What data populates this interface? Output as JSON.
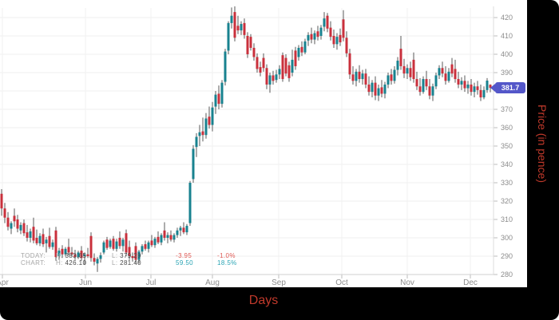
{
  "axis_titles": {
    "x": "Days",
    "y": "Price (in pence)"
  },
  "price_badge": {
    "value": "381.7",
    "color": "#5457c9"
  },
  "legend": {
    "rows": [
      {
        "label": "TODAY:",
        "h_prefix": "H:",
        "high": "383.65",
        "l_prefix": "L:",
        "low": "379.29",
        "change": "-3.95",
        "pct": "-1.0%"
      },
      {
        "label": "CHART:",
        "h_prefix": "H:",
        "high": "426.10",
        "l_prefix": "L:",
        "low": "281.40",
        "change": "59.50",
        "pct": "18.5%"
      }
    ]
  },
  "chart_data": {
    "type": "candlestick",
    "title": "",
    "xlabel": "Days",
    "ylabel": "Price (in pence)",
    "ylim": [
      280,
      420
    ],
    "grid": true,
    "legend_position": "bottom-left",
    "last_price": 381.7,
    "colors": {
      "up": "#18828f",
      "down": "#c9303c",
      "wick": "#5a5a5a",
      "grid": "#efefef",
      "axis": "#cfcfcf",
      "tick": "#bdbdbd",
      "label": "#8c8c8c"
    },
    "y_axis": {
      "min": 280,
      "max": 420,
      "step": 10,
      "ticks": [
        420,
        410,
        400,
        390,
        380,
        370,
        360,
        350,
        340,
        330,
        320,
        310,
        300,
        290,
        280
      ]
    },
    "x_axis": {
      "months": [
        {
          "label": "Apr",
          "x": 3
        },
        {
          "label": "Jun",
          "x": 107
        },
        {
          "label": "Jul",
          "x": 189
        },
        {
          "label": "Aug",
          "x": 266
        },
        {
          "label": "Sep",
          "x": 349
        },
        {
          "label": "Oct",
          "x": 428
        },
        {
          "label": "Nov",
          "x": 510
        },
        {
          "label": "Dec",
          "x": 589
        }
      ]
    },
    "candles": [
      [
        324,
        326.5,
        312,
        316
      ],
      [
        316,
        319,
        308,
        311
      ],
      [
        311,
        314,
        304,
        306
      ],
      [
        305,
        309,
        302,
        308
      ],
      [
        312,
        316,
        306,
        309
      ],
      [
        310,
        312.5,
        303,
        305
      ],
      [
        304,
        308.5,
        302,
        307
      ],
      [
        308,
        310,
        301,
        302.5
      ],
      [
        303,
        307,
        298,
        300
      ],
      [
        300,
        305,
        297.5,
        303.5
      ],
      [
        306,
        311,
        297,
        298.5
      ],
      [
        300,
        304.5,
        296,
        297
      ],
      [
        297,
        302.5,
        295.5,
        301
      ],
      [
        302,
        305,
        295,
        296.5
      ],
      [
        297,
        300.5,
        292,
        299
      ],
      [
        301,
        305.5,
        294,
        295
      ],
      [
        295,
        299,
        293.5,
        297.5
      ],
      [
        304,
        306,
        287.5,
        289.5
      ],
      [
        290,
        294.5,
        288,
        293
      ],
      [
        294,
        296,
        289,
        291
      ],
      [
        291,
        295,
        290,
        294
      ],
      [
        295,
        299.5,
        290.5,
        292
      ],
      [
        292,
        295,
        289.5,
        291
      ],
      [
        291,
        293.5,
        288,
        289.5
      ],
      [
        289.5,
        293,
        288.5,
        292
      ],
      [
        293,
        295.5,
        287.5,
        289
      ],
      [
        290,
        292,
        285.5,
        291
      ],
      [
        291,
        294.5,
        289,
        290
      ],
      [
        301,
        303,
        287,
        289
      ],
      [
        289,
        291.5,
        285,
        287
      ],
      [
        286,
        289.5,
        281.4,
        288.5
      ],
      [
        288.5,
        292,
        286.5,
        290.5
      ],
      [
        292,
        298.5,
        291,
        297.5
      ],
      [
        299,
        300.5,
        293.5,
        294.5
      ],
      [
        295,
        299.5,
        294,
        298.5
      ],
      [
        299.5,
        301,
        293,
        294
      ],
      [
        294,
        299.5,
        292.5,
        298
      ],
      [
        300,
        303.5,
        294,
        295.5
      ],
      [
        295.5,
        300,
        292.5,
        299
      ],
      [
        302.5,
        304.5,
        290,
        292
      ],
      [
        295,
        298.5,
        288,
        290
      ],
      [
        290,
        292,
        287,
        289
      ],
      [
        295.5,
        297.5,
        286,
        288
      ],
      [
        288,
        293.5,
        286,
        292.5
      ],
      [
        292.5,
        296.5,
        291,
        295.5
      ],
      [
        296.5,
        298.5,
        293,
        294
      ],
      [
        294,
        298.5,
        292,
        297.5
      ],
      [
        298.5,
        301.5,
        295,
        296
      ],
      [
        296,
        300.5,
        294.5,
        299.5
      ],
      [
        300.5,
        303.5,
        296.5,
        297.5
      ],
      [
        297.5,
        302.5,
        296,
        301.5
      ],
      [
        304,
        308.5,
        298.5,
        300
      ],
      [
        300,
        303,
        297,
        301.5
      ],
      [
        301.5,
        304,
        298,
        299
      ],
      [
        299,
        302.5,
        297.5,
        301.5
      ],
      [
        301.5,
        305.5,
        300,
        304
      ],
      [
        304,
        306.5,
        301,
        305.5
      ],
      [
        305.5,
        308.5,
        302,
        303
      ],
      [
        303,
        307.5,
        301.5,
        306.5
      ],
      [
        308,
        331,
        306.5,
        330
      ],
      [
        332,
        350.5,
        330,
        348.5
      ],
      [
        349.5,
        357,
        344,
        355
      ],
      [
        355.5,
        361.5,
        350,
        357.5
      ],
      [
        358,
        365.5,
        352.5,
        356
      ],
      [
        356,
        368,
        354,
        365
      ],
      [
        366,
        371.5,
        359.5,
        361.5
      ],
      [
        361.5,
        374,
        358,
        371
      ],
      [
        371.5,
        380,
        367.5,
        378
      ],
      [
        378.5,
        383,
        370,
        373
      ],
      [
        373,
        386,
        371,
        384.5
      ],
      [
        385,
        403,
        383,
        401.5
      ],
      [
        402,
        418,
        400,
        417
      ],
      [
        417,
        425.5,
        414,
        421
      ],
      [
        423,
        426.1,
        407,
        409
      ],
      [
        415.5,
        421,
        411,
        413
      ],
      [
        413,
        418,
        410.5,
        416.5
      ],
      [
        417,
        419.5,
        408.5,
        410.5
      ],
      [
        410,
        412,
        398,
        400
      ],
      [
        409.5,
        411,
        402,
        403.5
      ],
      [
        403.5,
        406,
        396.5,
        398.5
      ],
      [
        398.5,
        400.5,
        390,
        392
      ],
      [
        393,
        396,
        388,
        390
      ],
      [
        398,
        400.5,
        390.5,
        392.5
      ],
      [
        392.5,
        394.5,
        381,
        383.5
      ],
      [
        383.5,
        390,
        379,
        388.5
      ],
      [
        388.5,
        391,
        383.5,
        385.5
      ],
      [
        386,
        391.5,
        384.5,
        389
      ],
      [
        389,
        394,
        386.5,
        392
      ],
      [
        399.5,
        401,
        385,
        386.5
      ],
      [
        398,
        400,
        388,
        389.5
      ],
      [
        394,
        396,
        385,
        387
      ],
      [
        390,
        402.5,
        388,
        397
      ],
      [
        402,
        404,
        391.5,
        393.5
      ],
      [
        398.5,
        405,
        396.5,
        403.5
      ],
      [
        404,
        407,
        399,
        401
      ],
      [
        401,
        408.5,
        400,
        407
      ],
      [
        407.5,
        412,
        404.5,
        410.5
      ],
      [
        411,
        414.5,
        406,
        408
      ],
      [
        408,
        413,
        405.5,
        411.5
      ],
      [
        412.5,
        415.5,
        407.5,
        409.5
      ],
      [
        410,
        416,
        408,
        414.5
      ],
      [
        415,
        423,
        412.5,
        419.5
      ],
      [
        421,
        422.5,
        412,
        414
      ],
      [
        414.5,
        418,
        407.5,
        409.5
      ],
      [
        410,
        413.5,
        403.5,
        405.5
      ],
      [
        405.5,
        411.5,
        402.5,
        409.5
      ],
      [
        410.5,
        414,
        404.5,
        406.5
      ],
      [
        419,
        424,
        407,
        409
      ],
      [
        409,
        412.5,
        398.5,
        400.5
      ],
      [
        400.5,
        403,
        386.5,
        389
      ],
      [
        389,
        393.5,
        383.5,
        385.5
      ],
      [
        385.5,
        392,
        382.5,
        390.5
      ],
      [
        390.5,
        394,
        384.5,
        386.5
      ],
      [
        386.5,
        391.5,
        383.5,
        389.5
      ],
      [
        389.5,
        392,
        381.5,
        383.5
      ],
      [
        383.5,
        388,
        377.5,
        379.5
      ],
      [
        379.5,
        386,
        376.5,
        384.5
      ],
      [
        384.5,
        388,
        375,
        377.5
      ],
      [
        377.5,
        383.5,
        374.5,
        381.5
      ],
      [
        382,
        386,
        376.5,
        378.5
      ],
      [
        378.5,
        385,
        376,
        383.5
      ],
      [
        383.5,
        390,
        381.5,
        388.5
      ],
      [
        389,
        392,
        383.5,
        385.5
      ],
      [
        385.5,
        393.5,
        384,
        391.5
      ],
      [
        391.5,
        398.5,
        388.5,
        396.5
      ],
      [
        403,
        410,
        391.5,
        393.5
      ],
      [
        393.5,
        397.5,
        387,
        389.5
      ],
      [
        389.5,
        394.5,
        386.5,
        392.5
      ],
      [
        392.5,
        396,
        385.5,
        387.5
      ],
      [
        397,
        401,
        384.5,
        386.5
      ],
      [
        386.5,
        390.5,
        380.5,
        382.5
      ],
      [
        382.5,
        387,
        377.5,
        379.5
      ],
      [
        379.5,
        388,
        378.5,
        386.5
      ],
      [
        386.5,
        391,
        380.5,
        382.5
      ],
      [
        382.5,
        386.5,
        375.5,
        377.5
      ],
      [
        377.5,
        384,
        374.5,
        382.5
      ],
      [
        382.5,
        390,
        381,
        388.5
      ],
      [
        388.5,
        394,
        386.5,
        392.5
      ],
      [
        392.5,
        396,
        387.5,
        389.5
      ],
      [
        389.5,
        393.5,
        383.5,
        385.5
      ],
      [
        385.5,
        392.5,
        384.5,
        390.5
      ],
      [
        394.5,
        398,
        387.5,
        389.5
      ],
      [
        392,
        397,
        384.5,
        386.5
      ],
      [
        386.5,
        390.5,
        381.5,
        383.5
      ],
      [
        383.5,
        387.5,
        380.5,
        385.5
      ],
      [
        385.5,
        388.5,
        379.5,
        381.5
      ],
      [
        381.5,
        385.5,
        378.5,
        383.5
      ],
      [
        383.5,
        386.5,
        377.5,
        379.5
      ],
      [
        379.5,
        384.5,
        376.5,
        382.5
      ],
      [
        382.5,
        385.5,
        378,
        380.5
      ],
      [
        380.5,
        383.5,
        374.5,
        376.5
      ],
      [
        376.5,
        382.5,
        375.5,
        380.5
      ],
      [
        380.5,
        387,
        379,
        385.65
      ],
      [
        383.4,
        383.65,
        379.29,
        381.7
      ]
    ]
  }
}
